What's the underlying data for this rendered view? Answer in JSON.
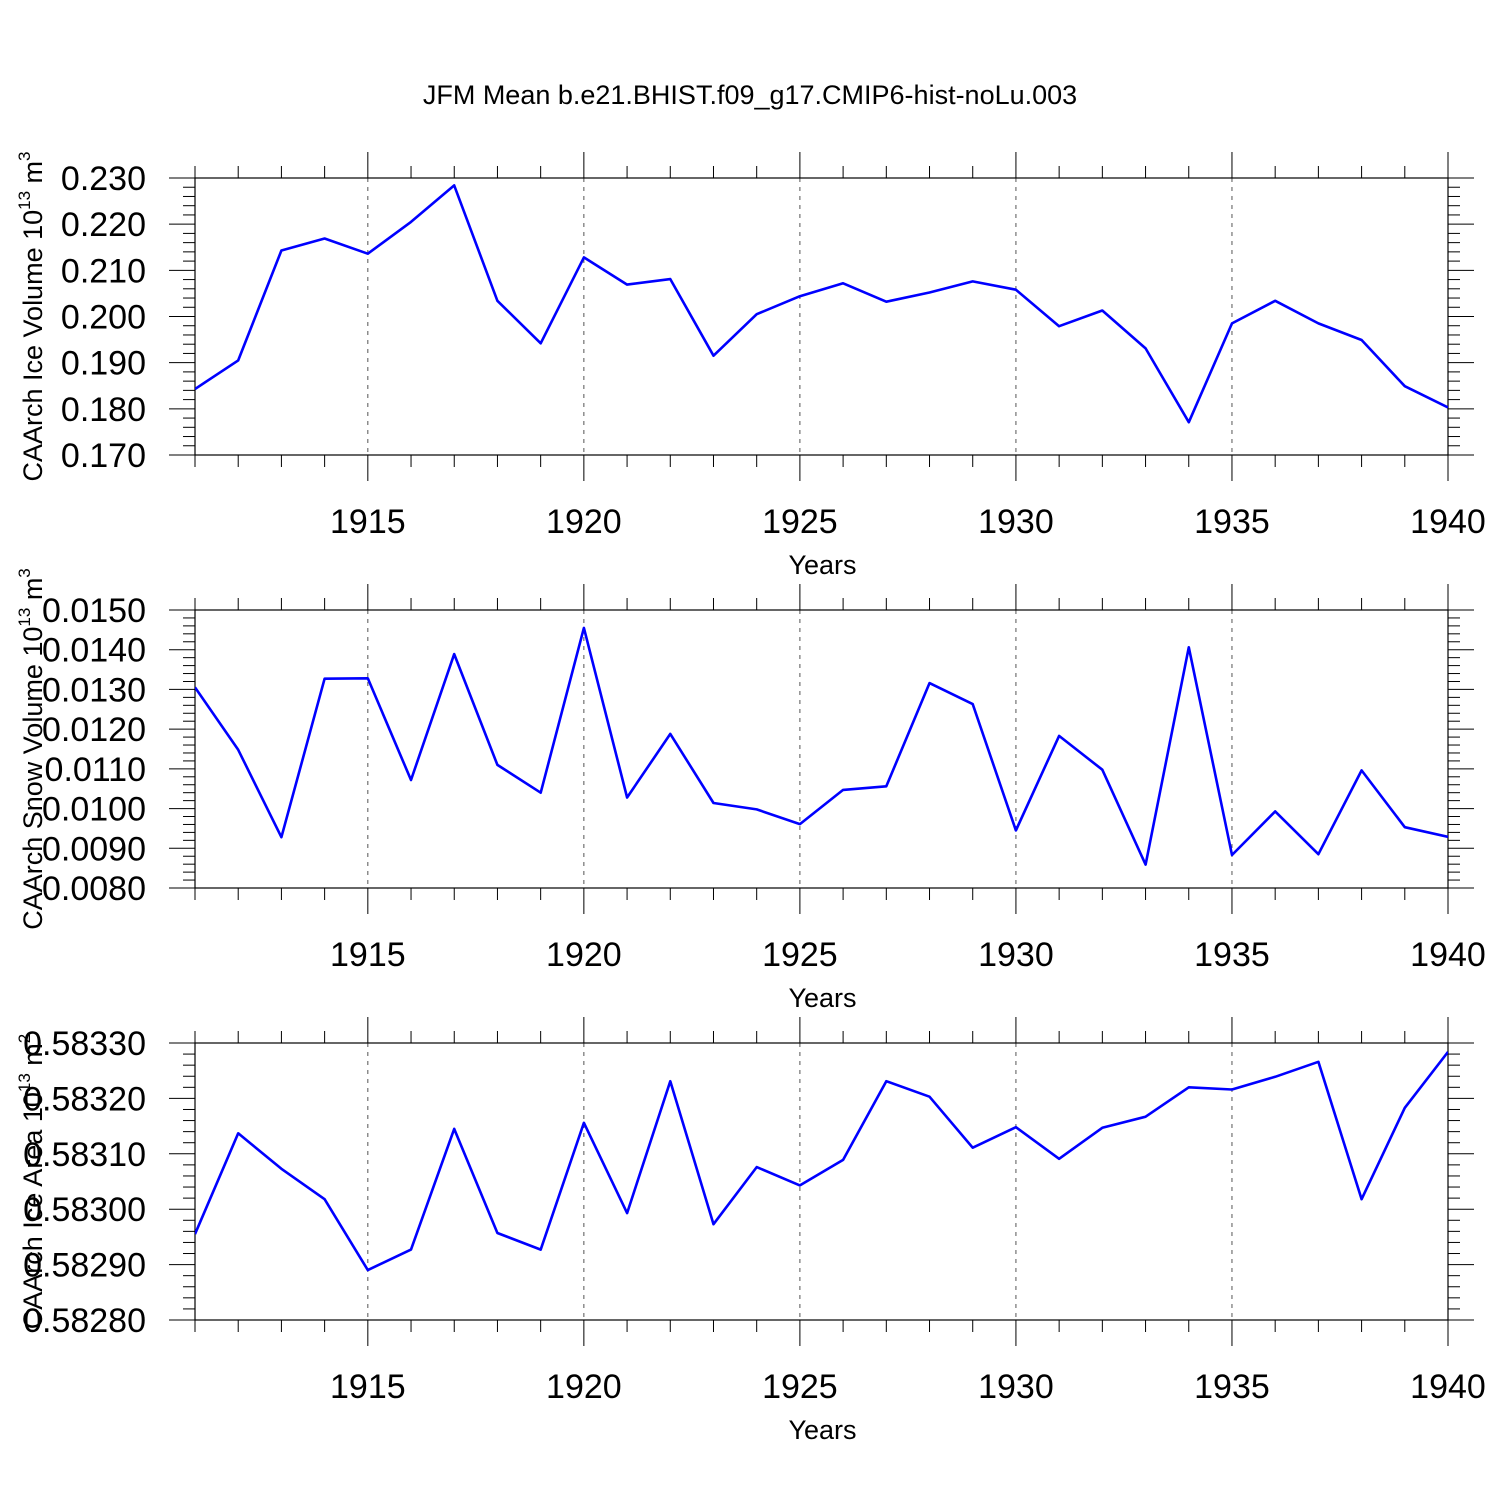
{
  "figure": {
    "title": "JFM Mean b.e21.BHIST.f09_g17.CMIP6-hist-noLu.003",
    "line_color": "#0000ff"
  },
  "chart_data": [
    {
      "type": "line",
      "ylabel": "CAArch Ice Volume 10",
      "ylabel_exp": "13",
      "ylabel_unit": " m",
      "ylabel_unit_exp": "3",
      "xlabel": "Years",
      "xlim": [
        1911,
        1940
      ],
      "ylim": [
        0.17,
        0.23
      ],
      "yticks": [
        "0.170",
        "0.180",
        "0.190",
        "0.200",
        "0.210",
        "0.220",
        "0.230"
      ],
      "xticks": [
        "1915",
        "1920",
        "1925",
        "1930",
        "1935",
        "1940"
      ],
      "grid": "vertical dashed at major x ticks",
      "x": [
        1911,
        1912,
        1913,
        1914,
        1915,
        1916,
        1917,
        1918,
        1919,
        1920,
        1921,
        1922,
        1923,
        1924,
        1925,
        1926,
        1927,
        1928,
        1929,
        1930,
        1931,
        1932,
        1933,
        1934,
        1935,
        1936,
        1937,
        1938,
        1939,
        1940
      ],
      "values": [
        0.1843,
        0.1905,
        0.2143,
        0.2169,
        0.2136,
        0.2205,
        0.2284,
        0.2034,
        0.1942,
        0.2128,
        0.2069,
        0.2081,
        0.1915,
        0.2005,
        0.2044,
        0.2072,
        0.2032,
        0.2052,
        0.2076,
        0.2058,
        0.1979,
        0.2013,
        0.1931,
        0.1771,
        0.1985,
        0.2034,
        0.1985,
        0.1949,
        0.1849,
        0.1803
      ]
    },
    {
      "type": "line",
      "ylabel": "CAArch Snow Volume 10",
      "ylabel_exp": "13",
      "ylabel_unit": " m",
      "ylabel_unit_exp": "3",
      "xlabel": "Years",
      "xlim": [
        1911,
        1940
      ],
      "ylim": [
        0.008,
        0.015
      ],
      "yticks": [
        "0.0080",
        "0.0090",
        "0.0100",
        "0.0110",
        "0.0120",
        "0.0130",
        "0.0140",
        "0.0150"
      ],
      "xticks": [
        "1915",
        "1920",
        "1925",
        "1930",
        "1935",
        "1940"
      ],
      "grid": "vertical dashed at major x ticks",
      "x": [
        1911,
        1912,
        1913,
        1914,
        1915,
        1916,
        1917,
        1918,
        1919,
        1920,
        1921,
        1922,
        1923,
        1924,
        1925,
        1926,
        1927,
        1928,
        1929,
        1930,
        1931,
        1932,
        1933,
        1934,
        1935,
        1936,
        1937,
        1938,
        1939,
        1940
      ],
      "values": [
        0.01305,
        0.01148,
        0.00928,
        0.01327,
        0.01328,
        0.01072,
        0.01389,
        0.0111,
        0.0104,
        0.01455,
        0.01028,
        0.01188,
        0.01014,
        0.00998,
        0.00961,
        0.01047,
        0.01056,
        0.01316,
        0.01263,
        0.00945,
        0.01183,
        0.01098,
        0.00859,
        0.01406,
        0.00883,
        0.00993,
        0.00885,
        0.01096,
        0.00953,
        0.00929
      ]
    },
    {
      "type": "line",
      "ylabel": "CAArch Ice Area 10",
      "ylabel_exp": "13",
      "ylabel_unit": " m",
      "ylabel_unit_exp": "2",
      "xlabel": "Years",
      "xlim": [
        1911,
        1940
      ],
      "ylim": [
        0.5828,
        0.5833
      ],
      "yticks": [
        "0.58280",
        "0.58290",
        "0.58300",
        "0.58310",
        "0.58320",
        "0.58330"
      ],
      "xticks": [
        "1915",
        "1920",
        "1925",
        "1930",
        "1935",
        "1940"
      ],
      "grid": "vertical dashed at major x ticks",
      "x": [
        1911,
        1912,
        1913,
        1914,
        1915,
        1916,
        1917,
        1918,
        1919,
        1920,
        1921,
        1922,
        1923,
        1924,
        1925,
        1926,
        1927,
        1928,
        1929,
        1930,
        1931,
        1932,
        1933,
        1934,
        1935,
        1936,
        1937,
        1938,
        1939,
        1940
      ],
      "values": [
        0.582955,
        0.583137,
        0.583073,
        0.583018,
        0.58289,
        0.582927,
        0.583145,
        0.582957,
        0.582927,
        0.583156,
        0.582993,
        0.583231,
        0.582973,
        0.583076,
        0.583043,
        0.583089,
        0.583231,
        0.583203,
        0.583111,
        0.583148,
        0.583091,
        0.583147,
        0.583167,
        0.58322,
        0.583216,
        0.583239,
        0.583266,
        0.583018,
        0.583183,
        0.583284
      ]
    }
  ]
}
